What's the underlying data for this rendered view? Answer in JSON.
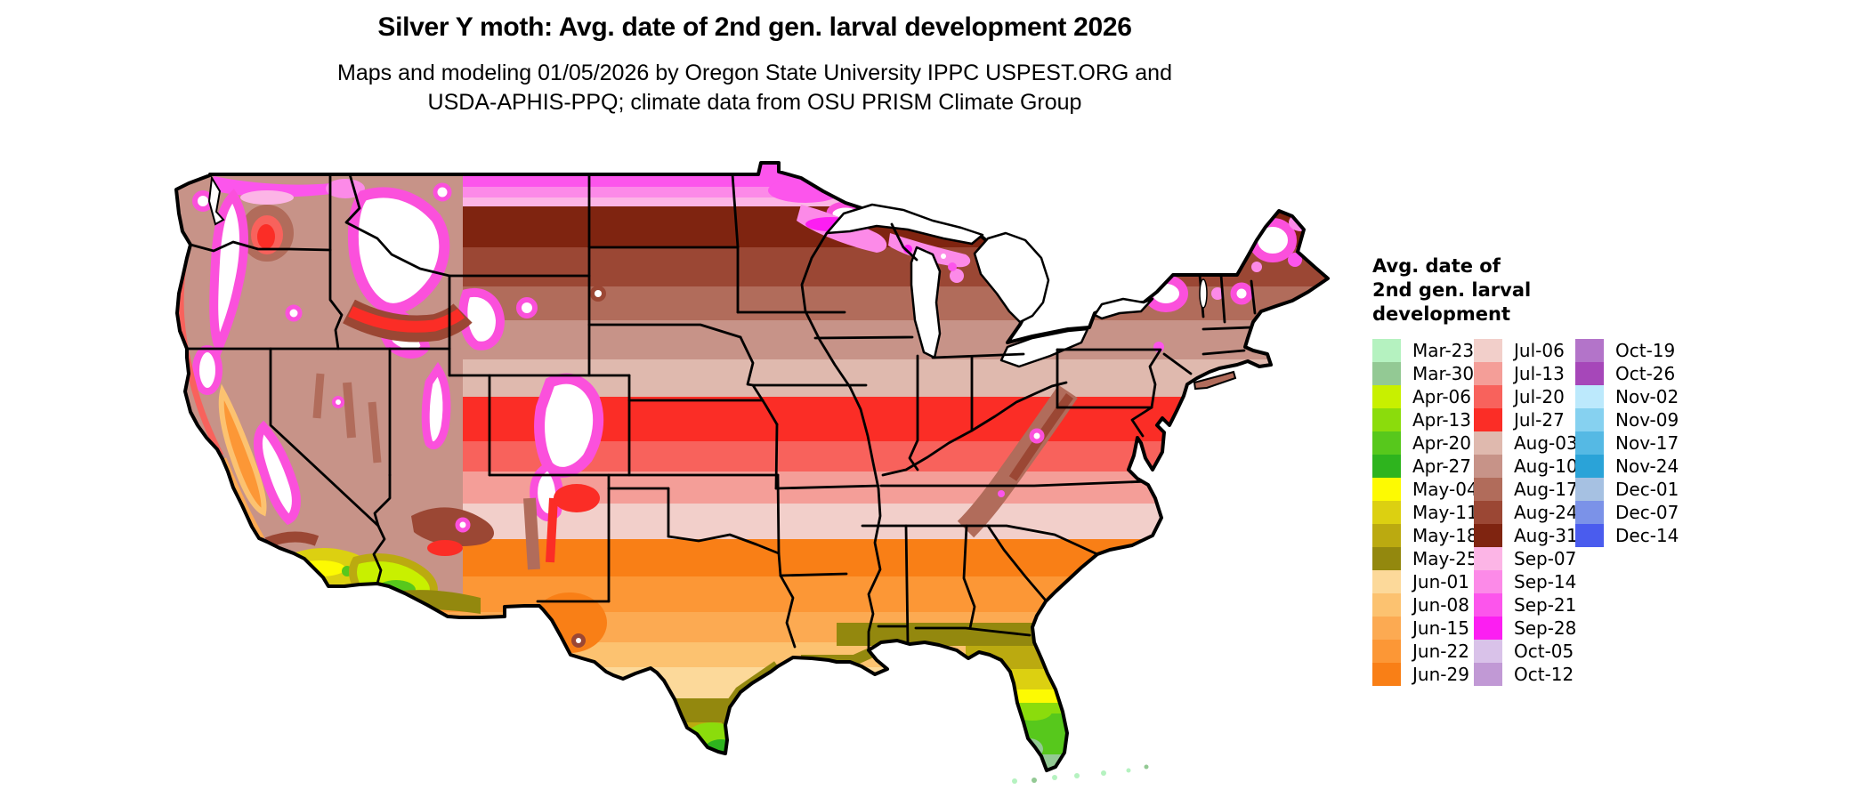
{
  "header": {
    "title": "Silver Y moth: Avg. date of 2nd gen. larval development 2026",
    "subtitle1": "Maps and modeling 01/05/2026 by Oregon State University IPPC USPEST.ORG and",
    "subtitle2": "USDA-APHIS-PPQ; climate data from OSU PRISM Climate Group"
  },
  "map": {
    "region_depicted": "Contiguous United States choropleth of average date of 2nd generation larval development"
  },
  "legend": {
    "title_lines": [
      "Avg. date of",
      "2nd gen. larval",
      "development"
    ],
    "columns": [
      {
        "entries": [
          {
            "label": "Mar-23",
            "color": "#b5f2c0"
          },
          {
            "label": "Mar-30",
            "color": "#93c994"
          },
          {
            "label": "Apr-06",
            "color": "#c8f000"
          },
          {
            "label": "Apr-13",
            "color": "#8bdc0c"
          },
          {
            "label": "Apr-20",
            "color": "#57c81c"
          },
          {
            "label": "Apr-27",
            "color": "#2eb41e"
          },
          {
            "label": "May-04",
            "color": "#fdfa02"
          },
          {
            "label": "May-11",
            "color": "#dcd011"
          },
          {
            "label": "May-18",
            "color": "#bbaa10"
          },
          {
            "label": "May-25",
            "color": "#93880e"
          },
          {
            "label": "Jun-01",
            "color": "#fcd99a"
          },
          {
            "label": "Jun-08",
            "color": "#fcc270"
          },
          {
            "label": "Jun-15",
            "color": "#fcaa52"
          },
          {
            "label": "Jun-22",
            "color": "#fc9736"
          },
          {
            "label": "Jun-29",
            "color": "#f97f16"
          }
        ]
      },
      {
        "entries": [
          {
            "label": "Jul-06",
            "color": "#f2cfca"
          },
          {
            "label": "Jul-13",
            "color": "#f49e98"
          },
          {
            "label": "Jul-20",
            "color": "#f8625c"
          },
          {
            "label": "Jul-27",
            "color": "#fb2d26"
          },
          {
            "label": "Aug-03",
            "color": "#dfb9ae"
          },
          {
            "label": "Aug-10",
            "color": "#c79388"
          },
          {
            "label": "Aug-17",
            "color": "#b16c5b"
          },
          {
            "label": "Aug-24",
            "color": "#9b4734"
          },
          {
            "label": "Aug-31",
            "color": "#7f2410"
          },
          {
            "label": "Sep-07",
            "color": "#fcb5e6"
          },
          {
            "label": "Sep-14",
            "color": "#fc8ae8"
          },
          {
            "label": "Sep-21",
            "color": "#fc55ec"
          },
          {
            "label": "Sep-28",
            "color": "#fc1ef2"
          },
          {
            "label": "Oct-05",
            "color": "#d9c2e9"
          },
          {
            "label": "Oct-12",
            "color": "#c199d5"
          }
        ]
      },
      {
        "entries": [
          {
            "label": "Oct-19",
            "color": "#b374c9"
          },
          {
            "label": "Oct-26",
            "color": "#a647b9"
          },
          {
            "label": "Nov-02",
            "color": "#bce9fc"
          },
          {
            "label": "Nov-09",
            "color": "#86d1f0"
          },
          {
            "label": "Nov-17",
            "color": "#55b9e4"
          },
          {
            "label": "Nov-24",
            "color": "#2aa3d8"
          },
          {
            "label": "Dec-01",
            "color": "#a6c1e2"
          },
          {
            "label": "Dec-07",
            "color": "#7b92e8"
          },
          {
            "label": "Dec-14",
            "color": "#4a5cee"
          }
        ]
      }
    ]
  }
}
